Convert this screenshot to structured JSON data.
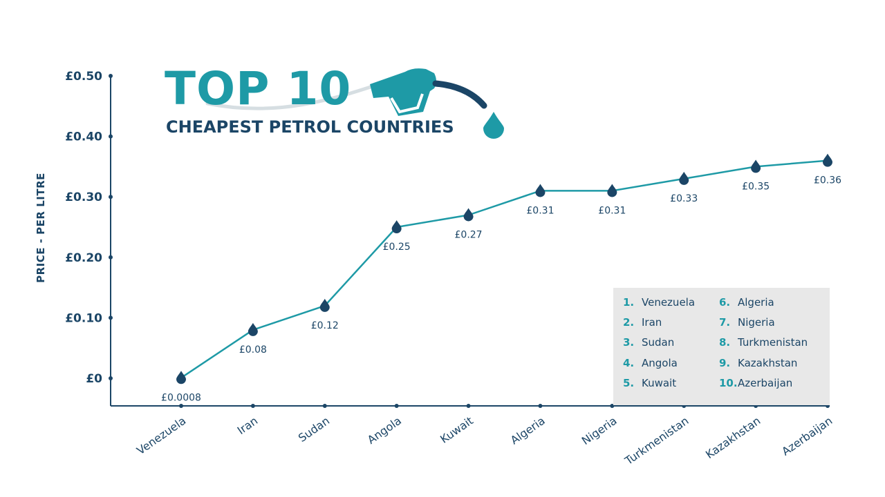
{
  "title": {
    "main": "TOP 10",
    "subtitle": "CHEAPEST PETROL COUNTRIES"
  },
  "colors": {
    "accent": "#1e9aa6",
    "dark": "#1b4566",
    "legend_bg": "#e8e8e8",
    "hose": "#d6dee2"
  },
  "icons": [
    "fuel-nozzle-icon",
    "fuel-drop-icon"
  ],
  "legend": {
    "items": [
      {
        "num": "1.",
        "name": "Venezuela"
      },
      {
        "num": "2.",
        "name": "Iran"
      },
      {
        "num": "3.",
        "name": "Sudan"
      },
      {
        "num": "4.",
        "name": "Angola"
      },
      {
        "num": "5.",
        "name": "Kuwait"
      },
      {
        "num": "6.",
        "name": "Algeria"
      },
      {
        "num": "7.",
        "name": "Nigeria"
      },
      {
        "num": "8.",
        "name": "Turkmenistan"
      },
      {
        "num": "9.",
        "name": "Kazakhstan"
      },
      {
        "num": "10.",
        "name": "Azerbaijan"
      }
    ]
  },
  "chart_data": {
    "type": "line",
    "xlabel": "",
    "ylabel": "PRICE  - PER LITRE",
    "categories": [
      "Venezuela",
      "Iran",
      "Sudan",
      "Angola",
      "Kuwait",
      "Algeria",
      "Nigeria",
      "Turkmenistan",
      "Kazakhstan",
      "Azerbaijan"
    ],
    "values": [
      0.0008,
      0.08,
      0.12,
      0.25,
      0.27,
      0.31,
      0.31,
      0.33,
      0.35,
      0.36
    ],
    "data_labels": [
      "£0.0008",
      "£0.08",
      "£0.12",
      "£0.25",
      "£0.27",
      "£0.31",
      "£0.31",
      "£0.33",
      "£0.35",
      "£0.36"
    ],
    "ylim": [
      0,
      0.5
    ],
    "yticks": [
      0,
      0.1,
      0.2,
      0.3,
      0.4,
      0.5
    ],
    "ytick_labels": [
      "£0",
      "£0.10",
      "£0.20",
      "£0.30",
      "£0.40",
      "£0.50"
    ],
    "grid": false,
    "legend_placement": "bottom-right"
  }
}
